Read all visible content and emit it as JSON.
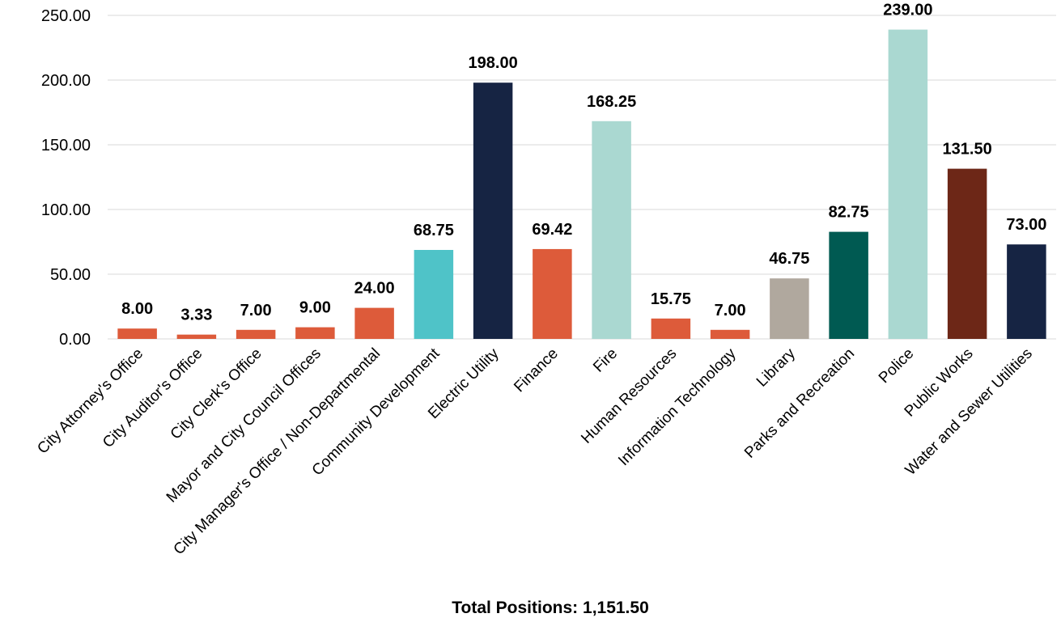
{
  "chart_data": {
    "type": "bar",
    "categories": [
      "City Attorney's Office",
      "City Auditor's Office",
      "City Clerk's Office",
      "Mayor and City Council Offices",
      "City Manager's Office / Non-Departmental",
      "Community Development",
      "Electric Utility",
      "Finance",
      "Fire",
      "Human Resources",
      "Information Technology",
      "Library",
      "Parks and Recreation",
      "Police",
      "Public Works",
      "Water and Sewer Utilities"
    ],
    "values": [
      8.0,
      3.33,
      7.0,
      9.0,
      24.0,
      68.75,
      198.0,
      69.42,
      168.25,
      15.75,
      7.0,
      46.75,
      82.75,
      239.0,
      131.5,
      73.0
    ],
    "data_labels": [
      "8.00",
      "3.33",
      "7.00",
      "9.00",
      "24.00",
      "68.75",
      "198.00",
      "69.42",
      "168.25",
      "15.75",
      "7.00",
      "46.75",
      "82.75",
      "239.00",
      "131.50",
      "73.00"
    ],
    "colors": [
      "#dd5b3a",
      "#dd5b3a",
      "#dd5b3a",
      "#dd5b3a",
      "#dd5b3a",
      "#4fc3c8",
      "#162443",
      "#dd5b3a",
      "#aad8d1",
      "#dd5b3a",
      "#dd5b3a",
      "#b0a89e",
      "#005a52",
      "#aad8d1",
      "#6d2717",
      "#162443"
    ],
    "yticks": [
      "0.00",
      "50.00",
      "100.00",
      "150.00",
      "200.00",
      "250.00"
    ],
    "ylim": [
      0,
      250
    ],
    "xlabel": "Total Positions: 1,151.50",
    "ylabel": "",
    "grid": true
  }
}
